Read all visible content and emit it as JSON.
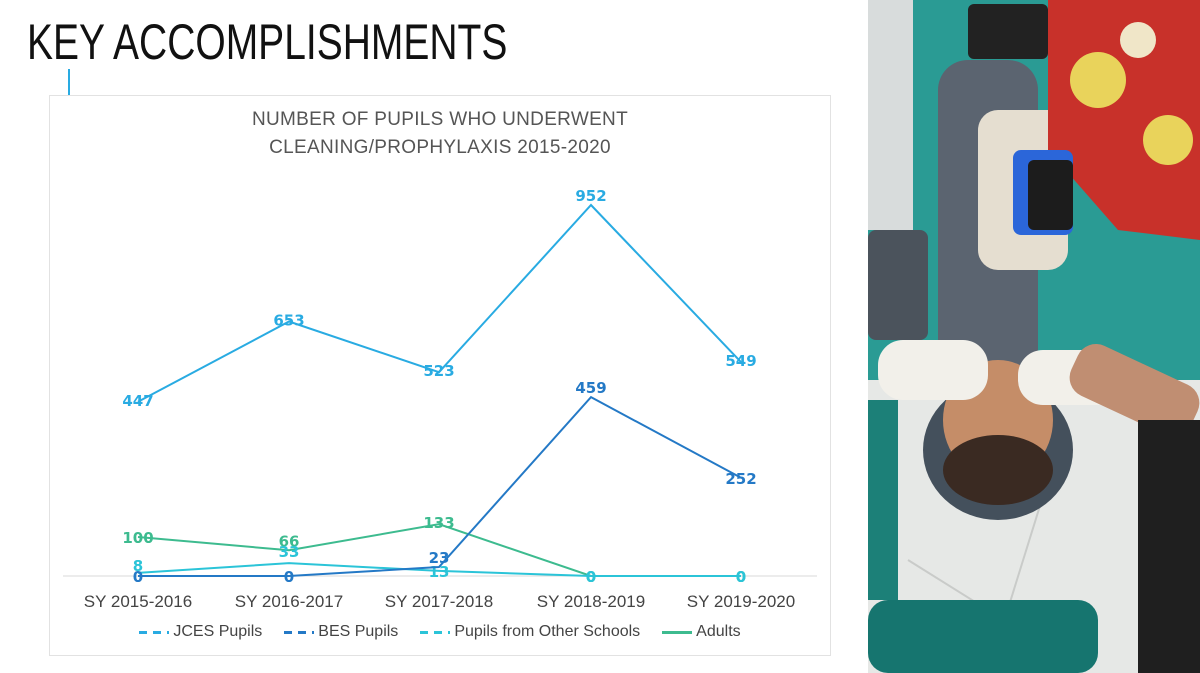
{
  "slide": {
    "title": "KEY ACCOMPLISHMENTS",
    "accent_color": "#29abe2"
  },
  "chart": {
    "title_line1": "NUMBER OF PUPILS WHO UNDERWENT",
    "title_line2": "CLEANING/PROPHYLAXIS 2015-2020",
    "legend": [
      {
        "label": "JCES Pupils",
        "color": "#29abe2",
        "style": "dashed"
      },
      {
        "label": "BES Pupils",
        "color": "#2479c6",
        "style": "dashed"
      },
      {
        "label": "Pupils from Other Schools",
        "color": "#2bc4d8",
        "style": "dashed"
      },
      {
        "label": "Adults",
        "color": "#3dbb8f",
        "style": "solid"
      }
    ]
  },
  "photo": {
    "description": "Dentist in comic-print cap treating a child lying in a dental chair"
  },
  "chart_data": {
    "type": "line",
    "title": "NUMBER OF PUPILS WHO UNDERWENT CLEANING/PROPHYLAXIS 2015-2020",
    "xlabel": "",
    "ylabel": "",
    "categories": [
      "SY 2015-2016",
      "SY 2016-2017",
      "SY 2017-2018",
      "SY 2018-2019",
      "SY 2019-2020"
    ],
    "series": [
      {
        "name": "JCES Pupils",
        "values": [
          447,
          653,
          523,
          952,
          549
        ],
        "color": "#29abe2"
      },
      {
        "name": "BES Pupils",
        "values": [
          0,
          0,
          23,
          459,
          252
        ],
        "color": "#2479c6"
      },
      {
        "name": "Pupils from Other Schools",
        "values": [
          8,
          33,
          13,
          0,
          0
        ],
        "color": "#2bc4d8"
      },
      {
        "name": "Adults",
        "values": [
          100,
          66,
          133,
          0,
          0
        ],
        "color": "#3dbb8f"
      }
    ],
    "ylim": [
      0,
      1000
    ],
    "grid": false,
    "data_labels": true,
    "legend_position": "bottom"
  }
}
